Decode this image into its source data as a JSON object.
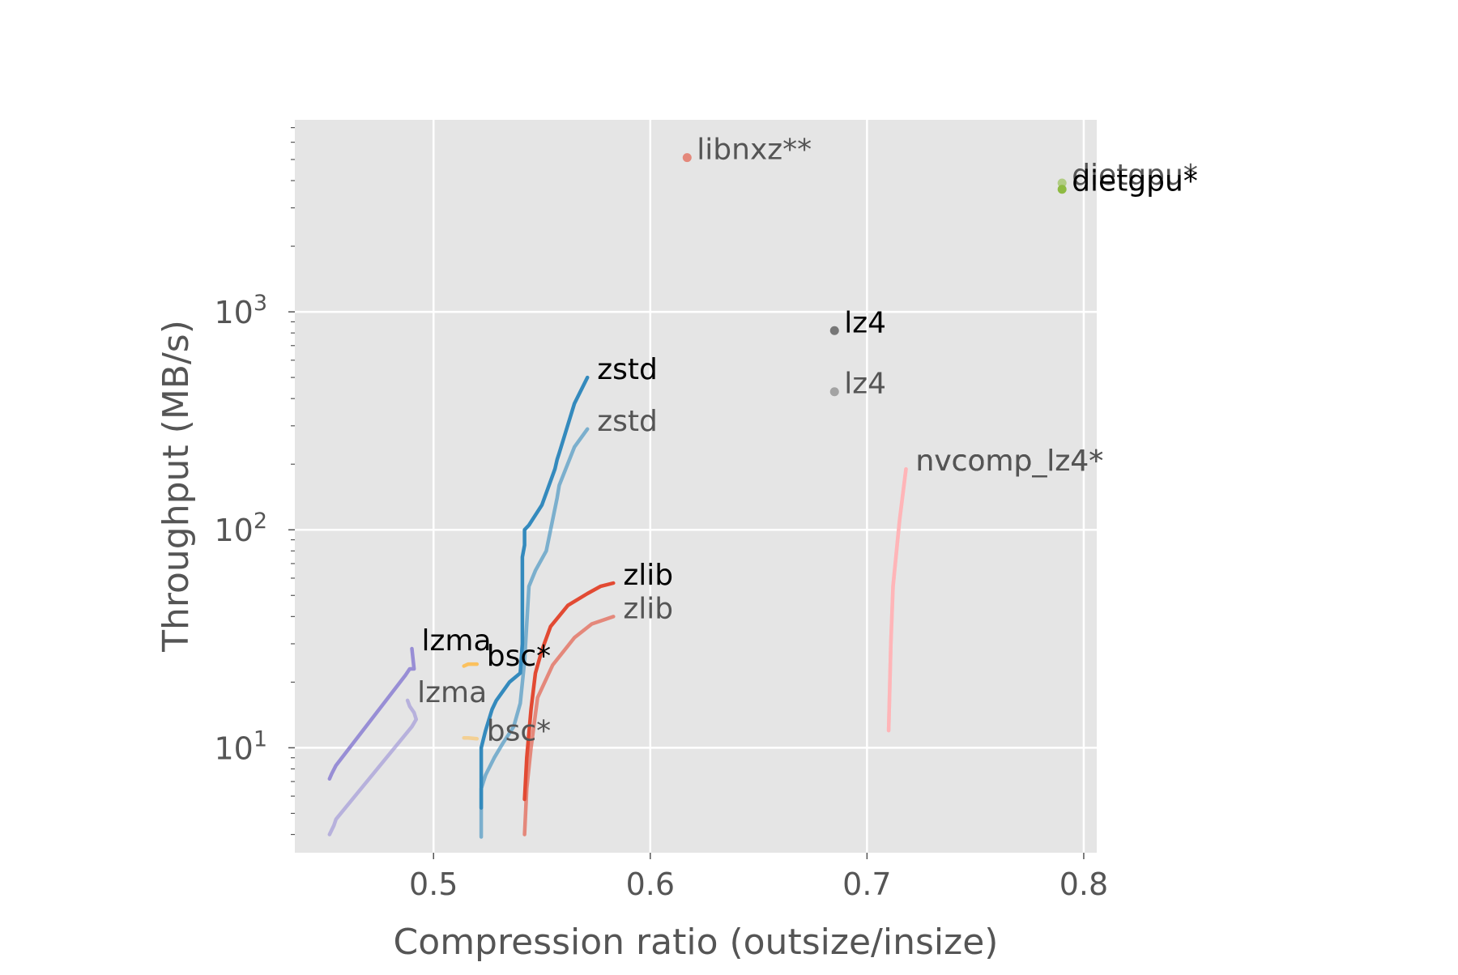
{
  "chart_data": {
    "type": "line",
    "title": "",
    "xlabel": "Compression ratio (outsize/insize)",
    "ylabel": "Throughput (MB/s)",
    "xlim": [
      0.436,
      0.806
    ],
    "ylim": [
      3.3,
      7600
    ],
    "yscale": "log",
    "grid": true,
    "legend": "none",
    "x_ticks": [
      {
        "value": 0.5,
        "label": "0.5"
      },
      {
        "value": 0.6,
        "label": "0.6"
      },
      {
        "value": 0.7,
        "label": "0.7"
      },
      {
        "value": 0.8,
        "label": "0.8"
      }
    ],
    "y_ticks": [
      {
        "value": 10,
        "base": "10",
        "exp": "1"
      },
      {
        "value": 100,
        "base": "10",
        "exp": "2"
      },
      {
        "value": 1000,
        "base": "10",
        "exp": "3"
      }
    ],
    "series": [
      {
        "name": "zstd",
        "label_color": "#000000",
        "color": "#348abd",
        "opacity": 1.0,
        "kind": "line",
        "x": [
          0.522,
          0.522,
          0.524,
          0.527,
          0.529,
          0.535,
          0.54,
          0.541,
          0.541,
          0.541,
          0.542,
          0.542,
          0.544,
          0.55,
          0.556,
          0.557,
          0.558,
          0.565,
          0.571
        ],
        "y": [
          5.3,
          10,
          12,
          15,
          16.5,
          20,
          22,
          30,
          50,
          75,
          85,
          100,
          105,
          130,
          190,
          210,
          225,
          380,
          500
        ]
      },
      {
        "name": "zstd",
        "label_color": "#555555",
        "color": "#348abd",
        "opacity": 0.6,
        "kind": "line",
        "x": [
          0.522,
          0.522,
          0.524,
          0.528,
          0.532,
          0.537,
          0.54,
          0.542,
          0.544,
          0.547,
          0.552,
          0.557,
          0.558,
          0.565,
          0.571
        ],
        "y": [
          3.9,
          6.5,
          7.5,
          9,
          10.5,
          12.5,
          16,
          25,
          55,
          65,
          80,
          140,
          160,
          240,
          290
        ]
      },
      {
        "name": "zlib",
        "label_color": "#000000",
        "color": "#e24a33",
        "opacity": 1.0,
        "kind": "line",
        "x": [
          0.542,
          0.543,
          0.545,
          0.547,
          0.55,
          0.554,
          0.562,
          0.571,
          0.577,
          0.583
        ],
        "y": [
          5.8,
          9,
          15,
          22,
          28,
          36,
          45,
          51,
          55,
          57
        ]
      },
      {
        "name": "zlib",
        "label_color": "#555555",
        "color": "#e24a33",
        "opacity": 0.6,
        "kind": "line",
        "x": [
          0.542,
          0.543,
          0.545,
          0.548,
          0.555,
          0.565,
          0.573,
          0.583
        ],
        "y": [
          4,
          6.5,
          10,
          17,
          24,
          32,
          37,
          40
        ]
      },
      {
        "name": "lzma",
        "label_color": "#000000",
        "color": "#988ed5",
        "opacity": 1.0,
        "kind": "line",
        "x": [
          0.452,
          0.453,
          0.455,
          0.487,
          0.489,
          0.491,
          0.49
        ],
        "y": [
          7.2,
          7.6,
          8.3,
          21.5,
          23,
          23,
          28.5
        ]
      },
      {
        "name": "lzma",
        "label_color": "#555555",
        "color": "#988ed5",
        "opacity": 0.6,
        "kind": "line",
        "x": [
          0.452,
          0.454,
          0.455,
          0.49,
          0.492,
          0.491,
          0.489,
          0.488
        ],
        "y": [
          4,
          4.4,
          4.7,
          12.5,
          13.5,
          14.5,
          15.5,
          16.5
        ]
      },
      {
        "name": "bsc*",
        "label_color": "#000000",
        "color": "#fbc15e",
        "opacity": 1.0,
        "kind": "line",
        "x": [
          0.514,
          0.516,
          0.52
        ],
        "y": [
          23.7,
          24.2,
          24.2
        ]
      },
      {
        "name": "bsc*",
        "label_color": "#555555",
        "color": "#fbc15e",
        "opacity": 0.6,
        "kind": "line",
        "x": [
          0.514,
          0.516,
          0.52
        ],
        "y": [
          11.1,
          11.1,
          11.0
        ]
      },
      {
        "name": "nvcomp_lz4*",
        "label_color": "#000000",
        "color": "#ffb5b8",
        "opacity": 1.0,
        "kind": "line",
        "x": [
          0.71,
          0.711,
          0.712,
          0.715,
          0.718
        ],
        "y": [
          12,
          30,
          55,
          110,
          190
        ]
      },
      {
        "name": "nvcomp_lz4*",
        "label_color": "#555555",
        "color": "#ffb5b8",
        "opacity": 0.6,
        "kind": "line",
        "x": [
          0.71,
          0.711,
          0.712,
          0.715,
          0.718
        ],
        "y": [
          12,
          30,
          55,
          110,
          190
        ]
      },
      {
        "name": "lz4",
        "label_color": "#000000",
        "color": "#777777",
        "opacity": 1.0,
        "kind": "point",
        "x": [
          0.685
        ],
        "y": [
          820
        ]
      },
      {
        "name": "lz4",
        "label_color": "#555555",
        "color": "#777777",
        "opacity": 0.6,
        "kind": "point",
        "x": [
          0.685
        ],
        "y": [
          430
        ]
      },
      {
        "name": "libnxz**",
        "label_color": "#555555",
        "color": "#e24a33",
        "opacity": 0.6,
        "kind": "point",
        "x": [
          0.617
        ],
        "y": [
          5100
        ]
      },
      {
        "name": "dietgpu*",
        "label_color": "#555555",
        "color": "#8eba42",
        "opacity": 0.6,
        "kind": "point",
        "x": [
          0.79
        ],
        "y": [
          3900
        ]
      },
      {
        "name": "dietgpu*",
        "label_color": "#000000",
        "color": "#8eba42",
        "opacity": 1.0,
        "kind": "point",
        "x": [
          0.79
        ],
        "y": [
          3650
        ]
      }
    ]
  }
}
